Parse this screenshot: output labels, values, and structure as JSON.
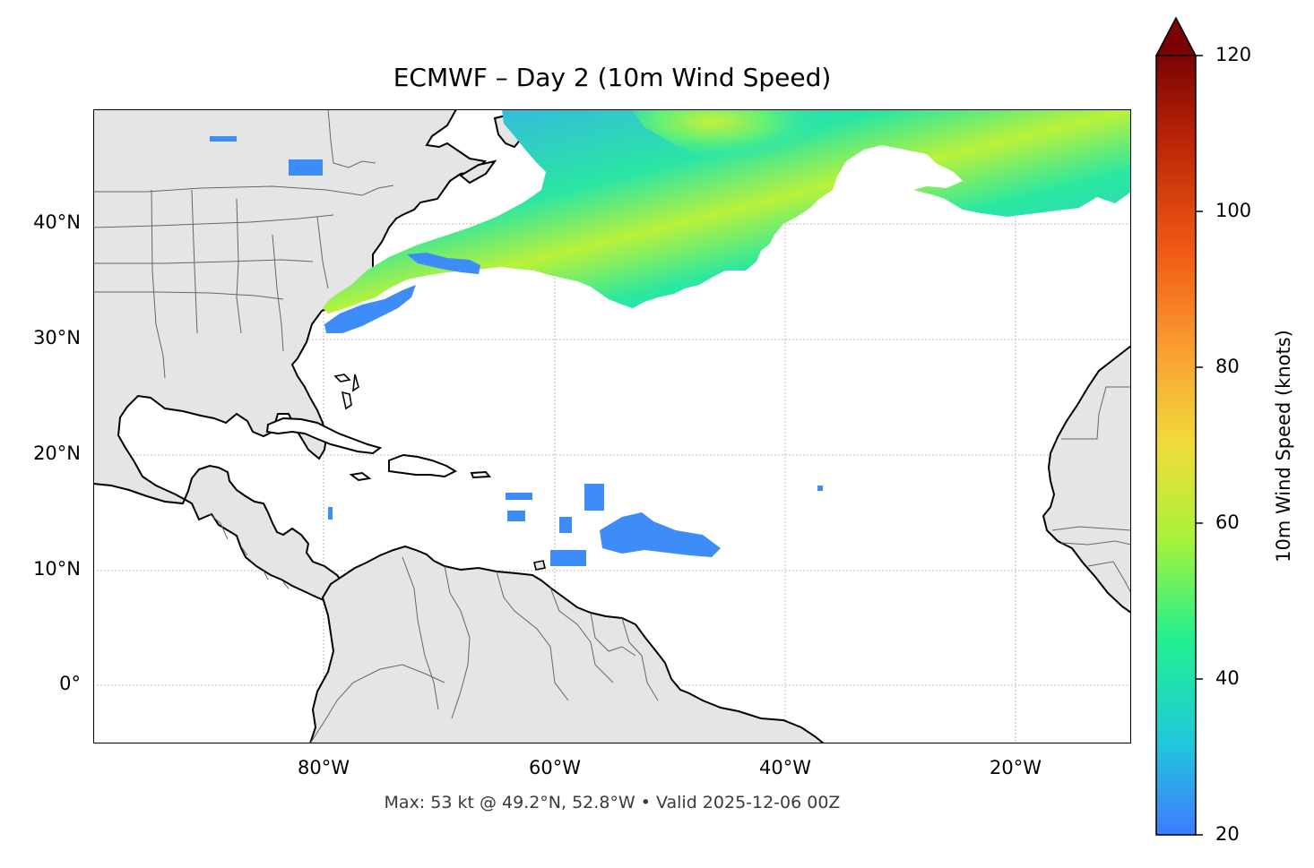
{
  "title": "ECMWF – Day 2 (10m Wind Speed)",
  "caption": "Max: 53 kt @ 49.2°N, 52.8°W • Valid 2025-12-06 00Z",
  "map": {
    "projection": "PlateCarree",
    "lon_range": [
      -100,
      -10
    ],
    "lat_range": [
      -5,
      50
    ],
    "gridlines": true,
    "field": "10m wind speed",
    "shown_above_min_only": true
  },
  "axes": {
    "lat_ticks": [
      "40°N",
      "30°N",
      "20°N",
      "10°N",
      "0°"
    ],
    "lon_ticks": [
      "80°W",
      "60°W",
      "40°W",
      "20°W"
    ]
  },
  "colorbar": {
    "label": "10m Wind Speed (knots)",
    "min": 20,
    "max": 120,
    "extend": "max",
    "ticks": [
      "20",
      "40",
      "60",
      "80",
      "100",
      "120"
    ],
    "colormap": "turbo-like",
    "colors": [
      "#3e7bff",
      "#1fc9d9",
      "#22f08f",
      "#a8f23a",
      "#f0dc3a",
      "#f9a032",
      "#f05a14",
      "#c02808",
      "#7a0403"
    ]
  },
  "colors": {
    "land": "#e5e5e5",
    "coast": "#000000",
    "borders": "#666666",
    "grid": "#bbbbbb"
  },
  "max_marker": {
    "value_kt": 53,
    "lat": 49.2,
    "lon": -52.8
  }
}
